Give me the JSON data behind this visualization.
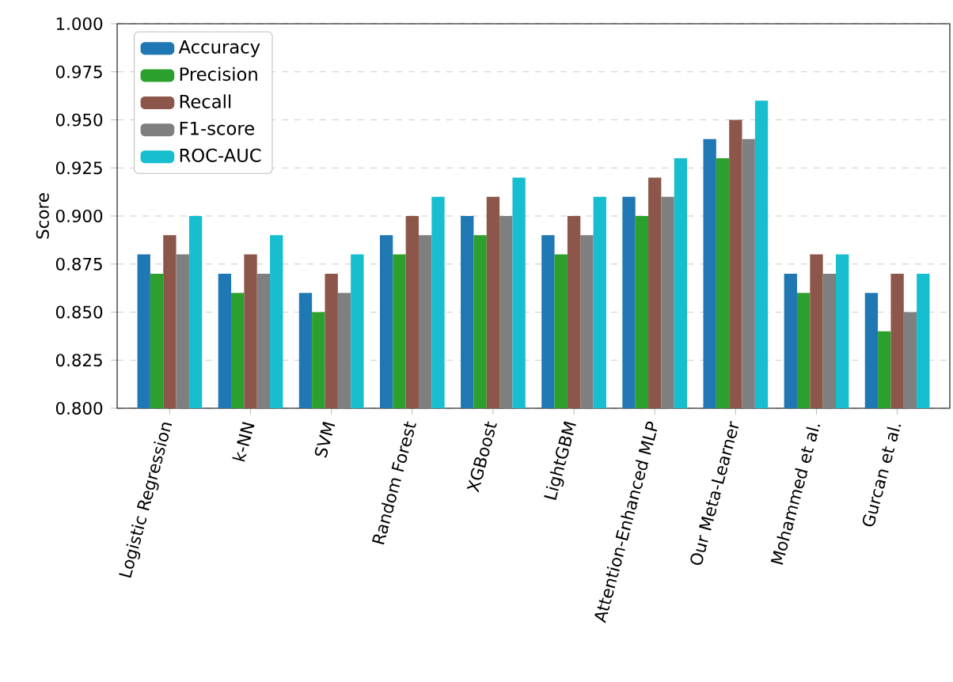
{
  "chart_data": {
    "type": "bar",
    "ylabel": "Score",
    "categories": [
      "Logistic Regression",
      "k-NN",
      "SVM",
      "Random Forest",
      "XGBoost",
      "LightGBM",
      "Attention-Enhanced MLP",
      "Our Meta-Learner",
      "Mohammed et al.",
      "Gurcan et al."
    ],
    "series": [
      {
        "name": "Accuracy",
        "color": "#1f77b4",
        "values": [
          0.88,
          0.87,
          0.86,
          0.89,
          0.9,
          0.89,
          0.91,
          0.94,
          0.87,
          0.86
        ]
      },
      {
        "name": "Precision",
        "color": "#2ca02c",
        "values": [
          0.87,
          0.86,
          0.85,
          0.88,
          0.89,
          0.88,
          0.9,
          0.93,
          0.86,
          0.84
        ]
      },
      {
        "name": "Recall",
        "color": "#8c564b",
        "values": [
          0.89,
          0.88,
          0.87,
          0.9,
          0.91,
          0.9,
          0.92,
          0.95,
          0.88,
          0.87
        ]
      },
      {
        "name": "F1-score",
        "color": "#7f7f7f",
        "values": [
          0.88,
          0.87,
          0.86,
          0.89,
          0.9,
          0.89,
          0.91,
          0.94,
          0.87,
          0.85
        ]
      },
      {
        "name": "ROC-AUC",
        "color": "#17becf",
        "values": [
          0.9,
          0.89,
          0.88,
          0.91,
          0.92,
          0.91,
          0.93,
          0.96,
          0.88,
          0.87
        ]
      }
    ],
    "ylim": [
      0.8,
      1.0
    ],
    "yticks": [
      {
        "value": 0.8,
        "label": "0.800"
      },
      {
        "value": 0.825,
        "label": "0.825"
      },
      {
        "value": 0.85,
        "label": "0.850"
      },
      {
        "value": 0.875,
        "label": "0.875"
      },
      {
        "value": 0.9,
        "label": "0.900"
      },
      {
        "value": 0.925,
        "label": "0.925"
      },
      {
        "value": 0.95,
        "label": "0.950"
      },
      {
        "value": 0.975,
        "label": "0.975"
      },
      {
        "value": 1.0,
        "label": "1.000"
      }
    ],
    "grid": "y",
    "legend": "top left"
  }
}
